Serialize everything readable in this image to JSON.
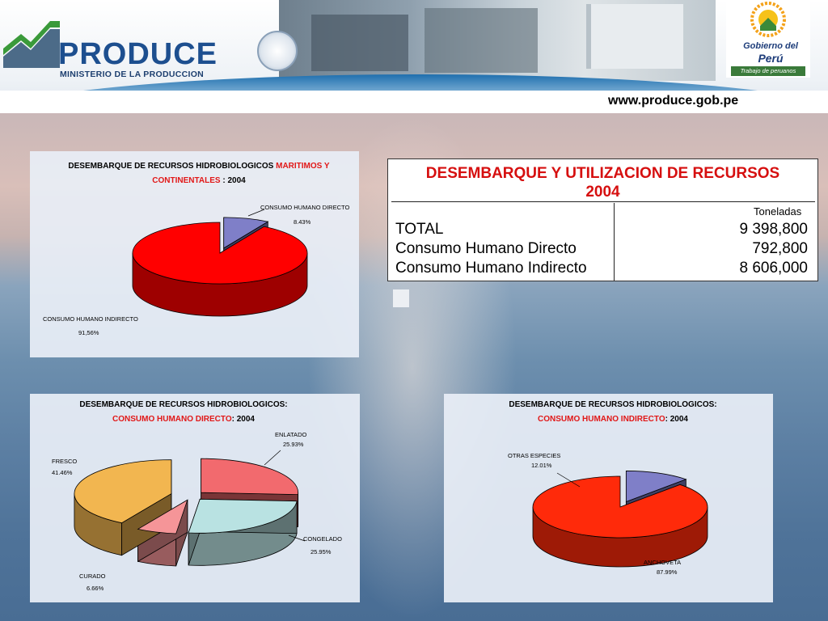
{
  "header": {
    "logo_text": "PRODUCE",
    "logo_subtitle": "MINISTERIO DE LA PRODUCCION",
    "gov_line1": "Gobierno del",
    "gov_line2": "Perú",
    "gov_tagline": "Trabajo de peruanos",
    "url": "www.produce.gob.pe"
  },
  "table": {
    "title_line1": "DESEMBARQUE Y UTILIZACION DE RECURSOS",
    "title_line2": "2004",
    "unit": "Toneladas",
    "rows": [
      {
        "label": "TOTAL",
        "value": "9 398,800"
      },
      {
        "label": "Consumo Humano Directo",
        "value": "792,800"
      },
      {
        "label": "Consumo Humano Indirecto",
        "value": "8 606,000"
      }
    ]
  },
  "chart_data": [
    {
      "type": "pie",
      "title_black": "DESEMBARQUE DE RECURSOS HIDROBIOLOGICOS ",
      "title_red_1": "MARITIMOS Y",
      "title_red_2": "CONTINENTALES",
      "title_suffix": " : 2004",
      "slices": [
        {
          "name": "CONSUMO HUMANO DIRECTO",
          "value": 8.43,
          "label": "8.43%",
          "color": "#7f7fc8"
        },
        {
          "name": "CONSUMO HUMANO INDIRECTO",
          "value": 91.56,
          "label": "91,56%",
          "color": "#ff0000"
        }
      ]
    },
    {
      "type": "pie",
      "title_black": "DESEMBARQUE DE RECURSOS HIDROBIOLOGICOS:",
      "title_red": "CONSUMO HUMANO DIRECTO",
      "title_suffix": ": 2004",
      "slices": [
        {
          "name": "ENLATADO",
          "value": 25.93,
          "label": "25.93%",
          "color": "#f26a6e"
        },
        {
          "name": "CONGELADO",
          "value": 25.95,
          "label": "25.95%",
          "color": "#b9e2e2"
        },
        {
          "name": "CURADO",
          "value": 6.66,
          "label": "6.66%",
          "color": "#f59598"
        },
        {
          "name": "FRESCO",
          "value": 41.46,
          "label": "41.46%",
          "color": "#f2b650"
        }
      ]
    },
    {
      "type": "pie",
      "title_black": "DESEMBARQUE DE RECURSOS HIDROBIOLOGICOS:",
      "title_red": "CONSUMO HUMANO INDIRECTO",
      "title_suffix": ": 2004",
      "slices": [
        {
          "name": "OTRAS ESPECIES",
          "value": 12.01,
          "label": "12.01%",
          "color": "#7f7fc8"
        },
        {
          "name": "ANCHOVETA",
          "value": 87.99,
          "label": "87.99%",
          "color": "#ff2a0a"
        }
      ]
    }
  ]
}
